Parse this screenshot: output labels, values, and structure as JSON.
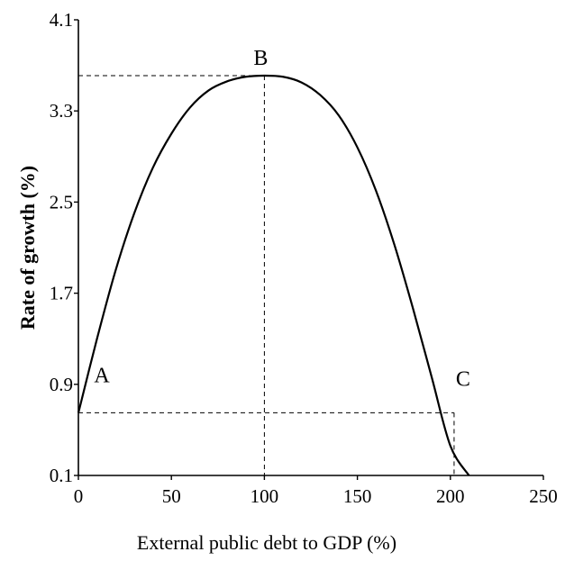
{
  "chart_data": {
    "type": "line",
    "title": "",
    "xlabel": "External public debt to GDP (%)",
    "ylabel": "Rate of growth (%)",
    "xlim": [
      0,
      250
    ],
    "ylim": [
      0.1,
      4.1
    ],
    "x_ticks": [
      "0",
      "50",
      "100",
      "150",
      "200",
      "250"
    ],
    "y_ticks": [
      "0.1",
      "0.9",
      "1.7",
      "2.5",
      "3.3",
      "4.1"
    ],
    "grid": false,
    "legend": "none",
    "series": [
      {
        "x": [
          0,
          10,
          20,
          30,
          40,
          50,
          60,
          70,
          80,
          90,
          100,
          110,
          120,
          130,
          140,
          150,
          160,
          170,
          180,
          190,
          200,
          210
        ],
        "y": [
          0.65,
          1.3,
          1.9,
          2.4,
          2.8,
          3.1,
          3.33,
          3.48,
          3.56,
          3.6,
          3.61,
          3.6,
          3.55,
          3.44,
          3.26,
          2.98,
          2.6,
          2.12,
          1.56,
          0.96,
          0.36,
          0.1
        ]
      }
    ],
    "points": [
      {
        "label": "A",
        "x": 0,
        "y": 0.65
      },
      {
        "label": "B",
        "x": 100,
        "y": 3.61
      },
      {
        "label": "C",
        "x": 202,
        "y": 0.65
      }
    ]
  }
}
